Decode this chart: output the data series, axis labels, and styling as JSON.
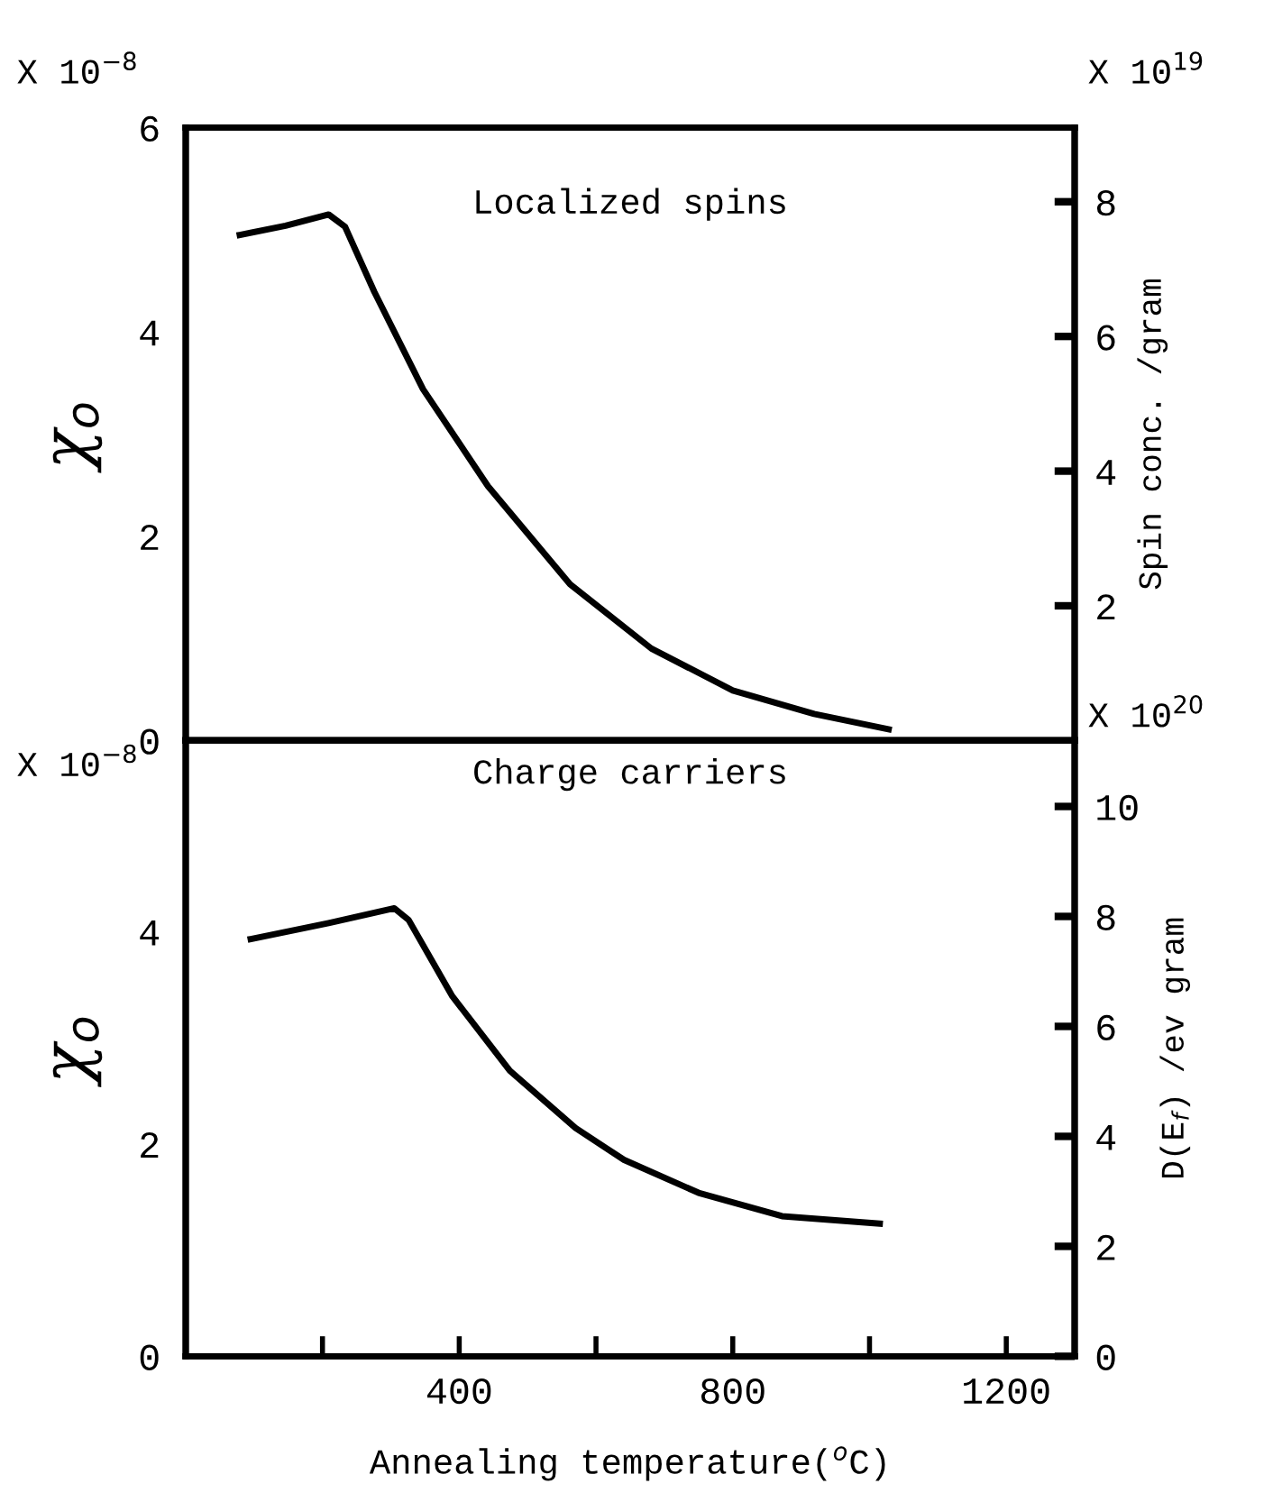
{
  "chart_data": [
    {
      "type": "line",
      "title": "Localized spins",
      "ylabel": "χ$_{o}$",
      "y2label": "Spin conc. /gram",
      "annotations": [
        "X 10$^{−8}$",
        "X 10$^{19}$"
      ],
      "series": [
        {
          "color": "#000000",
          "x": [
            79,
            146,
            209,
            233,
            276,
            347,
            442,
            562,
            681,
            800,
            919,
            1028
          ],
          "values": [
            4.95,
            5.04,
            5.15,
            5.03,
            4.39,
            3.44,
            2.49,
            1.53,
            0.9,
            0.49,
            0.26,
            0.11
          ]
        }
      ],
      "xlim": [
        0,
        1300
      ],
      "ylim": [
        0,
        6
      ],
      "yticks": [
        0,
        2,
        4,
        6
      ],
      "y2lim": [
        0,
        9.1
      ],
      "y2ticks": [
        2,
        4,
        6,
        8
      ],
      "tick_labels": "y",
      "grid": false,
      "legend": false
    },
    {
      "type": "line",
      "title": "Charge carriers",
      "xlabel": "Annealing temperature($^{o}$C)",
      "ylabel": "χ$_{o}$",
      "y2label": "D(E$_{f}$) /ev gram",
      "annotations": [
        "X 10$^{−8}$",
        "X 10$^{20}$"
      ],
      "series": [
        {
          "color": "#000000",
          "x": [
            95,
            209,
            305,
            326,
            390,
            474,
            570,
            641,
            750,
            872,
            1015
          ],
          "values": [
            3.93,
            4.08,
            4.22,
            4.11,
            3.39,
            2.69,
            2.15,
            1.85,
            1.54,
            1.32,
            1.25
          ]
        }
      ],
      "xlim": [
        0,
        1300
      ],
      "xticks": [
        {
          "value": 200,
          "label": null
        },
        400,
        {
          "value": 600,
          "label": null
        },
        800,
        {
          "value": 1000,
          "label": null
        },
        1200
      ],
      "ylim": [
        0,
        5.8
      ],
      "yticks": [
        0,
        2,
        4
      ],
      "y2lim": [
        0,
        11.2
      ],
      "y2ticks": [
        0,
        2,
        4,
        6,
        8,
        10
      ],
      "grid": false,
      "legend": false
    }
  ]
}
